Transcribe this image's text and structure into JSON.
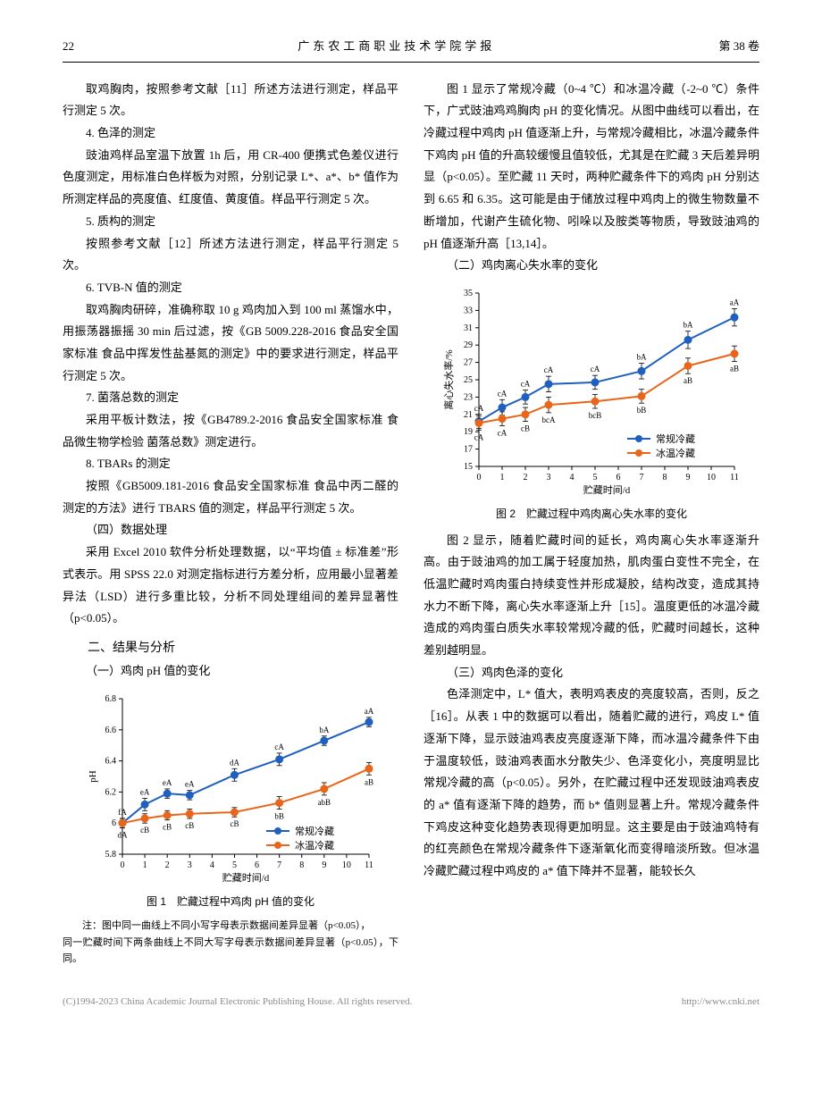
{
  "header": {
    "page_num": "22",
    "journal": "广东农工商职业技术学院学报",
    "volume": "第 38 卷"
  },
  "left": {
    "p1": "取鸡胸肉，按照参考文献［11］所述方法进行测定，样品平行测定 5 次。",
    "h4": "4. 色泽的测定",
    "p2": "豉油鸡样品室温下放置 1h 后，用 CR-400 便携式色差仪进行色度测定，用标准白色样板为对照，分别记录 L*、a*、b* 值作为所测定样品的亮度值、红度值、黄度值。样品平行测定 5 次。",
    "h5": "5. 质构的测定",
    "p3": "按照参考文献［12］所述方法进行测定，样品平行测定 5 次。",
    "h6": "6. TVB-N 值的测定",
    "p4": "取鸡胸肉研碎，准确称取 10 g 鸡肉加入到 100 ml 蒸馏水中，用振荡器振摇 30 min 后过滤，按《GB 5009.228-2016 食品安全国家标准 食品中挥发性盐基氮的测定》中的要求进行测定，样品平行测定 5 次。",
    "h7": "7. 菌落总数的测定",
    "p5": "采用平板计数法，按《GB4789.2-2016 食品安全国家标准 食品微生物学检验 菌落总数》测定进行。",
    "h8": "8. TBARs 的测定",
    "p6": "按照《GB5009.181-2016 食品安全国家标准 食品中丙二醛的测定的方法》进行 TBARS 值的测定，样品平行测定 5 次。",
    "h_data": "（四）数据处理",
    "p7": "采用 Excel 2010 软件分析处理数据，以“平均值 ± 标准差”形式表示。用 SPSS 22.0 对测定指标进行方差分析，应用最小显著差异法（LSD）进行多重比较，分析不同处理组间的差异显著性（p<0.05）。",
    "h_resdisc": "二、结果与分析",
    "h_ph": "（一）鸡肉 pH 值的变化",
    "fig1_caption": "图 1　贮藏过程中鸡肉 pH 值的变化",
    "fig1_note1": "注：图中同一曲线上不同小写字母表示数据间差异显著（p<0.05），",
    "fig1_note2": "同一贮藏时间下两条曲线上不同大写字母表示数据间差异显著（p<0.05），下同。"
  },
  "right": {
    "p1": "图 1 显示了常规冷藏（0~4 ℃）和冰温冷藏（-2~0 ℃）条件下，广式豉油鸡鸡胸肉 pH 的变化情况。从图中曲线可以看出，在冷藏过程中鸡肉 pH 值逐渐上升，与常规冷藏相比，冰温冷藏条件下鸡肉 pH 值的升高较缓慢且值较低，尤其是在贮藏 3 天后差异明显（p<0.05）。至贮藏 11 天时，两种贮藏条件下的鸡肉 pH 分别达到 6.65 和 6.35。这可能是由于储放过程中鸡肉上的微生物数量不断增加，代谢产生硫化物、吲哚以及胺类等物质，导致豉油鸡的 pH 值逐渐升高［13,14］。",
    "h_centrifuge": "（二）鸡肉离心失水率的变化",
    "fig2_caption": "图 2　贮藏过程中鸡肉离心失水率的变化",
    "p2": "图 2 显示，随着贮藏时间的延长，鸡肉离心失水率逐渐升高。由于豉油鸡的加工属于轻度加热，肌肉蛋白变性不完全，在低温贮藏时鸡肉蛋白持续变性并形成凝胶，结构改变，造成其持水力不断下降，离心失水率逐渐上升［15］。温度更低的冰温冷藏造成的鸡肉蛋白质失水率较常规冷藏的低，贮藏时间越长，这种差别越明显。",
    "h_color": "（三）鸡肉色泽的变化",
    "p3": "色泽测定中，L* 值大，表明鸡表皮的亮度较高，否则，反之［16］。从表 1 中的数据可以看出，随着贮藏的进行，鸡皮 L* 值逐渐下降，显示豉油鸡表皮亮度逐渐下降，而冰温冷藏条件下由于温度较低，豉油鸡表面水分散失少、色泽变化小，亮度明显比常规冷藏的高（p<0.05）。另外，在贮藏过程中还发现豉油鸡表皮的 a* 值有逐渐下降的趋势，而 b* 值则显著上升。常规冷藏条件下鸡皮这种变化趋势表现得更加明显。这主要是由于豉油鸡特有的红亮颜色在常规冷藏条件下逐渐氧化而变得暗淡所致。但冰温冷藏贮藏过程中鸡皮的 a* 值下降并不显著，能较长久"
  },
  "legend": {
    "s1": "常规冷藏",
    "s2": "冰温冷藏"
  },
  "axis": {
    "x": "贮藏时间/d",
    "y1": "pH",
    "y2": "离心失水率/%"
  },
  "colors": {
    "series1": "#1f5fbf",
    "series2": "#e8651a",
    "grid": "#000000",
    "bg": "#ffffff"
  },
  "chart1": {
    "type": "line",
    "xlim": [
      0,
      11
    ],
    "xticks": [
      0,
      1,
      2,
      3,
      4,
      5,
      6,
      7,
      8,
      9,
      10,
      11
    ],
    "ylim": [
      5.8,
      6.8
    ],
    "yticks": [
      5.8,
      6.0,
      6.2,
      6.4,
      6.6,
      6.8
    ],
    "x": [
      0,
      1,
      2,
      3,
      5,
      7,
      9,
      11
    ],
    "s1": {
      "y": [
        6.0,
        6.12,
        6.19,
        6.18,
        6.31,
        6.41,
        6.53,
        6.65
      ],
      "err": [
        0.03,
        0.04,
        0.03,
        0.03,
        0.04,
        0.04,
        0.03,
        0.03
      ],
      "annot": [
        "fA",
        "eA",
        "eA",
        "eA",
        "dA",
        "cA",
        "bA",
        "aA"
      ]
    },
    "s2": {
      "y": [
        6.0,
        6.03,
        6.05,
        6.06,
        6.07,
        6.13,
        6.22,
        6.35
      ],
      "err": [
        0.03,
        0.03,
        0.03,
        0.03,
        0.03,
        0.04,
        0.04,
        0.04
      ],
      "annot": [
        "dA",
        "cB",
        "cB",
        "cB",
        "cB",
        "bB",
        "abB",
        "aB"
      ]
    },
    "marker_size": 4,
    "line_width": 2
  },
  "chart2": {
    "type": "line",
    "xlim": [
      0,
      11
    ],
    "xticks": [
      0,
      1,
      2,
      3,
      4,
      5,
      6,
      7,
      8,
      9,
      10,
      11
    ],
    "ylim": [
      15,
      35
    ],
    "yticks": [
      15,
      17,
      19,
      21,
      23,
      25,
      27,
      29,
      31,
      33,
      35
    ],
    "x": [
      0,
      1,
      2,
      3,
      5,
      7,
      9,
      11
    ],
    "s1": {
      "y": [
        20.2,
        21.8,
        23.0,
        24.5,
        24.7,
        26.0,
        29.6,
        32.2
      ],
      "err": [
        0.8,
        0.9,
        0.8,
        0.9,
        0.8,
        0.9,
        1.0,
        1.0
      ],
      "annot": [
        "cA",
        "cA",
        "cA",
        "cA",
        "cA",
        "bA",
        "bA",
        "aA"
      ]
    },
    "s2": {
      "y": [
        20.0,
        20.5,
        21.0,
        22.1,
        22.5,
        23.1,
        26.6,
        28.0
      ],
      "err": [
        0.8,
        0.8,
        0.8,
        0.9,
        0.8,
        0.8,
        0.9,
        0.9
      ],
      "annot": [
        "cA",
        "cA",
        "cB",
        "bcA",
        "bcB",
        "bB",
        "aB",
        "aB"
      ]
    },
    "marker_size": 4,
    "line_width": 2
  },
  "footer": {
    "left": "(C)1994-2023 China Academic Journal Electronic Publishing House. All rights reserved.",
    "right": "http://www.cnki.net"
  }
}
